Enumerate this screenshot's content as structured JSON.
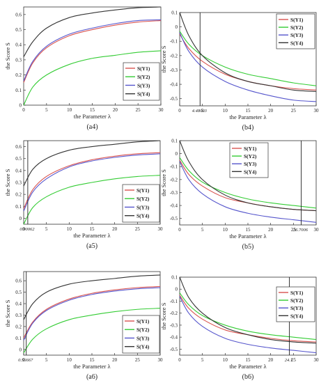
{
  "chart_data": [
    {
      "type": "line",
      "caption": "(a4)",
      "xlabel": "the Parameter λ",
      "ylabel": "the Score S",
      "xlim": [
        0,
        30
      ],
      "ylim": [
        0,
        0.65
      ],
      "xticks": [
        0,
        5,
        10,
        15,
        20,
        25,
        30
      ],
      "yticks": [
        0,
        0.1,
        0.2,
        0.3,
        0.4,
        0.5,
        0.6
      ],
      "ytick_labels": [
        "0",
        "0.1",
        "0.2",
        "0.3",
        "0.4",
        "0.5",
        "0.6"
      ],
      "legend": "right-center",
      "series": [
        {
          "name": "S(Y1)",
          "color": "#d9534f",
          "x": [
            0,
            2,
            5,
            10,
            15,
            20,
            25,
            30
          ],
          "y": [
            0.15,
            0.28,
            0.38,
            0.46,
            0.5,
            0.53,
            0.55,
            0.56
          ]
        },
        {
          "name": "S(Y2)",
          "color": "#33cc33",
          "x": [
            0,
            2,
            5,
            10,
            15,
            20,
            25,
            30
          ],
          "y": [
            0.0,
            0.12,
            0.2,
            0.27,
            0.31,
            0.33,
            0.35,
            0.36
          ]
        },
        {
          "name": "S(Y3)",
          "color": "#5555cc",
          "x": [
            0,
            2,
            5,
            10,
            15,
            20,
            25,
            30
          ],
          "y": [
            0.16,
            0.29,
            0.39,
            0.47,
            0.51,
            0.54,
            0.56,
            0.565
          ]
        },
        {
          "name": "S(Y4)",
          "color": "#333333",
          "x": [
            0,
            2,
            5,
            10,
            15,
            20,
            25,
            30
          ],
          "y": [
            0.32,
            0.42,
            0.51,
            0.58,
            0.61,
            0.63,
            0.645,
            0.65
          ]
        }
      ],
      "annotations": []
    },
    {
      "type": "line",
      "caption": "(b4)",
      "xlabel": "the Parameter λ",
      "ylabel": "the Score S",
      "xlim": [
        0,
        30
      ],
      "ylim": [
        -0.55,
        0.1
      ],
      "xticks": [
        0,
        5,
        10,
        15,
        20,
        25,
        30
      ],
      "yticks": [
        0.1,
        0,
        -0.1,
        -0.2,
        -0.3,
        -0.4,
        -0.5
      ],
      "ytick_labels": [
        "0.1",
        "0",
        "-0.1",
        "-0.2",
        "-0.3",
        "-0.4",
        "-0.5"
      ],
      "legend": "top-right",
      "series": [
        {
          "name": "S(Y1)",
          "color": "#d9534f",
          "x": [
            0,
            2,
            5,
            10,
            15,
            20,
            25,
            30
          ],
          "y": [
            -0.05,
            -0.15,
            -0.24,
            -0.33,
            -0.38,
            -0.41,
            -0.43,
            -0.44
          ]
        },
        {
          "name": "S(Y2)",
          "color": "#33cc33",
          "x": [
            0,
            2,
            5,
            10,
            15,
            20,
            25,
            30
          ],
          "y": [
            -0.03,
            -0.12,
            -0.2,
            -0.28,
            -0.33,
            -0.36,
            -0.39,
            -0.41
          ]
        },
        {
          "name": "S(Y3)",
          "color": "#5555cc",
          "x": [
            0,
            2,
            5,
            10,
            15,
            20,
            25,
            30
          ],
          "y": [
            -0.04,
            -0.17,
            -0.28,
            -0.38,
            -0.44,
            -0.48,
            -0.51,
            -0.52
          ]
        },
        {
          "name": "S(Y4)",
          "color": "#333333",
          "x": [
            0,
            2,
            5,
            10,
            15,
            20,
            25,
            30
          ],
          "y": [
            0.1,
            -0.06,
            -0.2,
            -0.32,
            -0.38,
            -0.41,
            -0.44,
            -0.45
          ]
        }
      ],
      "annotations": [
        {
          "type": "vline",
          "x": 4.48003,
          "label": "4.48003"
        }
      ]
    },
    {
      "type": "line",
      "caption": "(a5)",
      "xlabel": "the Parameter λ",
      "ylabel": "the Score S",
      "xlim": [
        0,
        30
      ],
      "ylim": [
        -0.05,
        0.65
      ],
      "xticks": [
        0,
        5,
        10,
        15,
        20,
        25,
        30
      ],
      "yticks": [
        0,
        0.1,
        0.2,
        0.3,
        0.4,
        0.5,
        0.6
      ],
      "ytick_labels": [
        "0",
        "0.1",
        "0.2",
        "0.3",
        "0.4",
        "0.5",
        "0.6"
      ],
      "legend": "bottom-right",
      "series": [
        {
          "name": "S(Y1)",
          "color": "#d9534f",
          "x": [
            0,
            2,
            5,
            10,
            15,
            20,
            25,
            30
          ],
          "y": [
            0.08,
            0.24,
            0.35,
            0.44,
            0.49,
            0.52,
            0.54,
            0.55
          ]
        },
        {
          "name": "S(Y2)",
          "color": "#33cc33",
          "x": [
            0,
            2,
            5,
            10,
            15,
            20,
            25,
            30
          ],
          "y": [
            -0.05,
            0.09,
            0.18,
            0.26,
            0.3,
            0.33,
            0.35,
            0.36
          ]
        },
        {
          "name": "S(Y3)",
          "color": "#5555cc",
          "x": [
            0,
            2,
            5,
            10,
            15,
            20,
            25,
            30
          ],
          "y": [
            0.06,
            0.22,
            0.33,
            0.43,
            0.48,
            0.51,
            0.53,
            0.54
          ]
        },
        {
          "name": "S(Y4)",
          "color": "#333333",
          "x": [
            0,
            2,
            5,
            10,
            15,
            20,
            25,
            30
          ],
          "y": [
            0.27,
            0.41,
            0.5,
            0.57,
            0.6,
            0.62,
            0.64,
            0.65
          ]
        }
      ],
      "annotations": [
        {
          "type": "vline",
          "x": 0.90062,
          "label": "0.90062"
        }
      ]
    },
    {
      "type": "line",
      "caption": "(b5)",
      "xlabel": "the Parameter λ",
      "ylabel": "the Score S",
      "xlim": [
        0,
        30
      ],
      "ylim": [
        -0.55,
        0.1
      ],
      "xticks": [
        0,
        5,
        10,
        15,
        20,
        25,
        30
      ],
      "yticks": [
        0.1,
        0,
        -0.1,
        -0.2,
        -0.3,
        -0.4,
        -0.5
      ],
      "ytick_labels": [
        "0.1",
        "0",
        "-0.1",
        "-0.2",
        "-0.3",
        "-0.4",
        "-0.5"
      ],
      "legend": "top-left",
      "series": [
        {
          "name": "S(Y1)",
          "color": "#d9534f",
          "x": [
            0,
            2,
            5,
            10,
            15,
            20,
            25,
            30
          ],
          "y": [
            -0.05,
            -0.16,
            -0.25,
            -0.34,
            -0.38,
            -0.41,
            -0.43,
            -0.44
          ]
        },
        {
          "name": "S(Y2)",
          "color": "#33cc33",
          "x": [
            0,
            2,
            5,
            10,
            15,
            20,
            25,
            30
          ],
          "y": [
            -0.03,
            -0.13,
            -0.22,
            -0.3,
            -0.35,
            -0.38,
            -0.4,
            -0.42
          ]
        },
        {
          "name": "S(Y3)",
          "color": "#5555cc",
          "x": [
            0,
            2,
            5,
            10,
            15,
            20,
            25,
            30
          ],
          "y": [
            -0.06,
            -0.2,
            -0.31,
            -0.41,
            -0.46,
            -0.49,
            -0.51,
            -0.53
          ]
        },
        {
          "name": "S(Y4)",
          "color": "#333333",
          "x": [
            0,
            2,
            5,
            10,
            15,
            20,
            25,
            30
          ],
          "y": [
            0.1,
            -0.06,
            -0.2,
            -0.32,
            -0.38,
            -0.41,
            -0.43,
            -0.44
          ]
        }
      ],
      "annotations": [
        {
          "type": "vline",
          "x": 26.7006,
          "label": "26.7006"
        }
      ]
    },
    {
      "type": "line",
      "caption": "(a6)",
      "xlabel": "the Parameter λ",
      "ylabel": "the Score S",
      "xlim": [
        0,
        30
      ],
      "ylim": [
        -0.05,
        0.68
      ],
      "xticks": [
        0,
        5,
        10,
        15,
        20,
        25,
        30
      ],
      "yticks": [
        0,
        0.1,
        0.2,
        0.3,
        0.4,
        0.5,
        0.6
      ],
      "ytick_labels": [
        "0",
        "0.1",
        "0.2",
        "0.3",
        "0.4",
        "0.5",
        "0.6"
      ],
      "legend": "bottom-right",
      "series": [
        {
          "name": "S(Y1)",
          "color": "#d9534f",
          "x": [
            0,
            2,
            5,
            10,
            15,
            20,
            25,
            30
          ],
          "y": [
            0.1,
            0.24,
            0.35,
            0.44,
            0.49,
            0.52,
            0.54,
            0.55
          ]
        },
        {
          "name": "S(Y2)",
          "color": "#33cc33",
          "x": [
            0,
            2,
            5,
            10,
            15,
            20,
            25,
            30
          ],
          "y": [
            -0.03,
            0.09,
            0.18,
            0.26,
            0.3,
            0.33,
            0.35,
            0.36
          ]
        },
        {
          "name": "S(Y3)",
          "color": "#5555cc",
          "x": [
            0,
            2,
            5,
            10,
            15,
            20,
            25,
            30
          ],
          "y": [
            0.08,
            0.23,
            0.34,
            0.43,
            0.48,
            0.51,
            0.53,
            0.54
          ]
        },
        {
          "name": "S(Y4)",
          "color": "#333333",
          "x": [
            0,
            2,
            5,
            10,
            15,
            20,
            25,
            30
          ],
          "y": [
            0.26,
            0.4,
            0.5,
            0.57,
            0.6,
            0.62,
            0.64,
            0.65
          ]
        }
      ],
      "annotations": [
        {
          "type": "vline",
          "x": 0.56667,
          "label": "0.56667"
        }
      ]
    },
    {
      "type": "line",
      "caption": "(b6)",
      "xlabel": "the Parameter λ",
      "ylabel": "the Score S",
      "xlim": [
        0,
        30
      ],
      "ylim": [
        -0.55,
        0.1
      ],
      "xticks": [
        0,
        5,
        10,
        15,
        20,
        25,
        30
      ],
      "yticks": [
        0.1,
        0,
        -0.1,
        -0.2,
        -0.3,
        -0.4,
        -0.5
      ],
      "ytick_labels": [
        "0.1",
        "0",
        "-0.1",
        "-0.2",
        "-0.3",
        "-0.4",
        "-0.5"
      ],
      "legend": "top-right",
      "series": [
        {
          "name": "S(Y1)",
          "color": "#d9534f",
          "x": [
            0,
            2,
            5,
            10,
            15,
            20,
            25,
            30
          ],
          "y": [
            -0.05,
            -0.16,
            -0.25,
            -0.34,
            -0.38,
            -0.41,
            -0.43,
            -0.44
          ]
        },
        {
          "name": "S(Y2)",
          "color": "#33cc33",
          "x": [
            0,
            2,
            5,
            10,
            15,
            20,
            25,
            30
          ],
          "y": [
            -0.03,
            -0.13,
            -0.22,
            -0.3,
            -0.35,
            -0.38,
            -0.4,
            -0.42
          ]
        },
        {
          "name": "S(Y3)",
          "color": "#5555cc",
          "x": [
            0,
            2,
            5,
            10,
            15,
            20,
            25,
            30
          ],
          "y": [
            -0.06,
            -0.2,
            -0.31,
            -0.41,
            -0.46,
            -0.49,
            -0.51,
            -0.53
          ]
        },
        {
          "name": "S(Y4)",
          "color": "#333333",
          "x": [
            0,
            2,
            5,
            10,
            15,
            20,
            25,
            30
          ],
          "y": [
            0.1,
            -0.07,
            -0.2,
            -0.32,
            -0.38,
            -0.42,
            -0.44,
            -0.45
          ]
        }
      ],
      "annotations": [
        {
          "type": "vline",
          "x": 24.1,
          "label": "24.1"
        }
      ]
    }
  ]
}
